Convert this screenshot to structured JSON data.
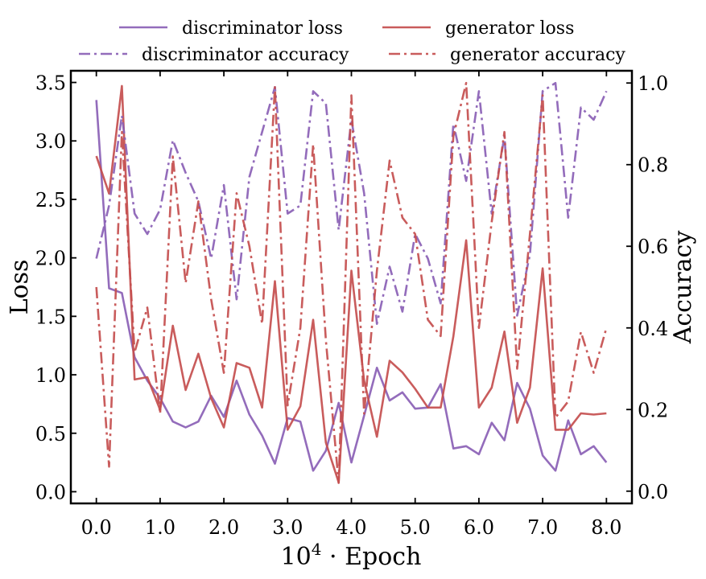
{
  "chart_data": {
    "type": "line",
    "xlabel": "10⁴ · Epoch",
    "ylabel_left": "Loss",
    "ylabel_right": "Accuracy",
    "x": [
      0.0,
      0.2,
      0.4,
      0.6,
      0.8,
      1.0,
      1.2,
      1.4,
      1.6,
      1.8,
      2.0,
      2.2,
      2.4,
      2.6,
      2.8,
      3.0,
      3.2,
      3.4,
      3.6,
      3.8,
      4.0,
      4.2,
      4.4,
      4.6,
      4.8,
      5.0,
      5.2,
      5.4,
      5.6,
      5.8,
      6.0,
      6.2,
      6.4,
      6.6,
      6.8,
      7.0,
      7.2,
      7.4,
      7.6,
      7.8,
      8.0
    ],
    "xlim": [
      -0.4,
      8.4
    ],
    "ylim_left": [
      -0.1,
      3.6
    ],
    "ylim_right": [
      -0.03,
      1.03
    ],
    "x_ticks": [
      0,
      1,
      2,
      3,
      4,
      5,
      6,
      7,
      8
    ],
    "x_tick_labels": [
      "0.0",
      "1.0",
      "2.0",
      "3.0",
      "4.0",
      "5.0",
      "6.0",
      "7.0",
      "8.0"
    ],
    "y_ticks_left": [
      0,
      0.5,
      1,
      1.5,
      2,
      2.5,
      3,
      3.5
    ],
    "y_tick_labels_left": [
      "0.0",
      "0.5",
      "1.0",
      "1.5",
      "2.0",
      "2.5",
      "3.0",
      "3.5"
    ],
    "y_ticks_right": [
      0,
      0.2,
      0.4,
      0.6,
      0.8,
      1.0
    ],
    "y_tick_labels_right": [
      "0.0",
      "0.2",
      "0.4",
      "0.6",
      "0.8",
      "1.0"
    ],
    "legend_position": "top, outside, 2 columns",
    "grid": false,
    "series": [
      {
        "name": "discriminator loss",
        "axis": "left",
        "color": "#8a5fb5",
        "style": "solid",
        "values": [
          3.35,
          1.74,
          1.7,
          1.15,
          0.95,
          0.8,
          0.6,
          0.55,
          0.6,
          0.82,
          0.64,
          0.95,
          0.66,
          0.48,
          0.24,
          0.63,
          0.6,
          0.18,
          0.35,
          0.76,
          0.25,
          0.65,
          1.06,
          0.78,
          0.85,
          0.71,
          0.72,
          0.92,
          0.37,
          0.39,
          0.32,
          0.59,
          0.44,
          0.93,
          0.71,
          0.31,
          0.18,
          0.61,
          0.32,
          0.39,
          0.25
        ]
      },
      {
        "name": "generator loss",
        "axis": "left",
        "color": "#c44e4e",
        "style": "solid",
        "values": [
          2.87,
          2.55,
          3.47,
          0.96,
          0.98,
          0.7,
          1.42,
          0.87,
          1.18,
          0.8,
          0.55,
          1.1,
          1.06,
          0.72,
          1.8,
          0.53,
          0.73,
          1.47,
          0.42,
          0.08,
          1.89,
          0.95,
          0.47,
          1.12,
          1.02,
          0.88,
          0.72,
          0.72,
          1.33,
          2.15,
          0.72,
          0.89,
          1.37,
          0.59,
          0.89,
          1.91,
          0.53,
          0.53,
          0.67,
          0.66,
          0.67
        ]
      },
      {
        "name": "discriminator accuracy",
        "axis": "right",
        "color": "#8a5fb5",
        "style": "dashdot",
        "values": [
          0.57,
          0.7,
          0.92,
          0.68,
          0.63,
          0.69,
          0.86,
          0.78,
          0.71,
          0.57,
          0.75,
          0.47,
          0.77,
          0.88,
          0.99,
          0.68,
          0.7,
          0.98,
          0.95,
          0.64,
          0.91,
          0.73,
          0.41,
          0.55,
          0.44,
          0.63,
          0.57,
          0.46,
          0.9,
          0.76,
          0.98,
          0.68,
          0.87,
          0.43,
          0.58,
          0.98,
          1.0,
          0.67,
          0.94,
          0.91,
          0.98
        ]
      },
      {
        "name": "generator accuracy",
        "axis": "right",
        "color": "#c44e4e",
        "style": "dashdot",
        "values": [
          0.5,
          0.06,
          0.88,
          0.34,
          0.45,
          0.19,
          0.82,
          0.51,
          0.71,
          0.47,
          0.29,
          0.73,
          0.6,
          0.41,
          0.99,
          0.21,
          0.4,
          0.85,
          0.37,
          0.02,
          0.97,
          0.19,
          0.54,
          0.81,
          0.67,
          0.63,
          0.42,
          0.38,
          0.87,
          1.0,
          0.4,
          0.66,
          0.88,
          0.3,
          0.63,
          0.97,
          0.18,
          0.22,
          0.39,
          0.29,
          0.4
        ]
      }
    ]
  }
}
